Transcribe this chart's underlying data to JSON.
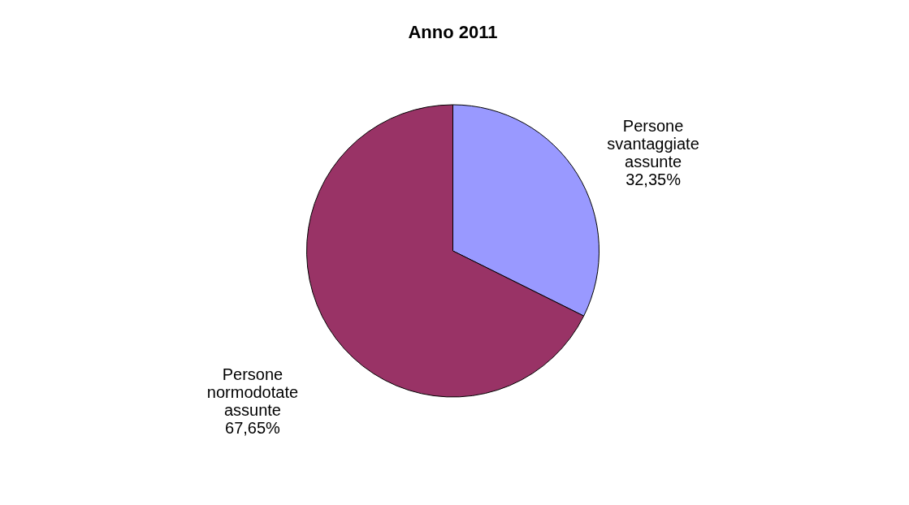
{
  "chart_data": {
    "type": "pie",
    "title": "Anno 2011",
    "categories": [
      "Persone svantaggiate assunte",
      "Persone normodotate assunte"
    ],
    "values": [
      32.35,
      67.65
    ],
    "value_labels": [
      "32,35%",
      "67,65%"
    ],
    "colors": [
      "#9999ff",
      "#993366"
    ],
    "legend": false
  }
}
